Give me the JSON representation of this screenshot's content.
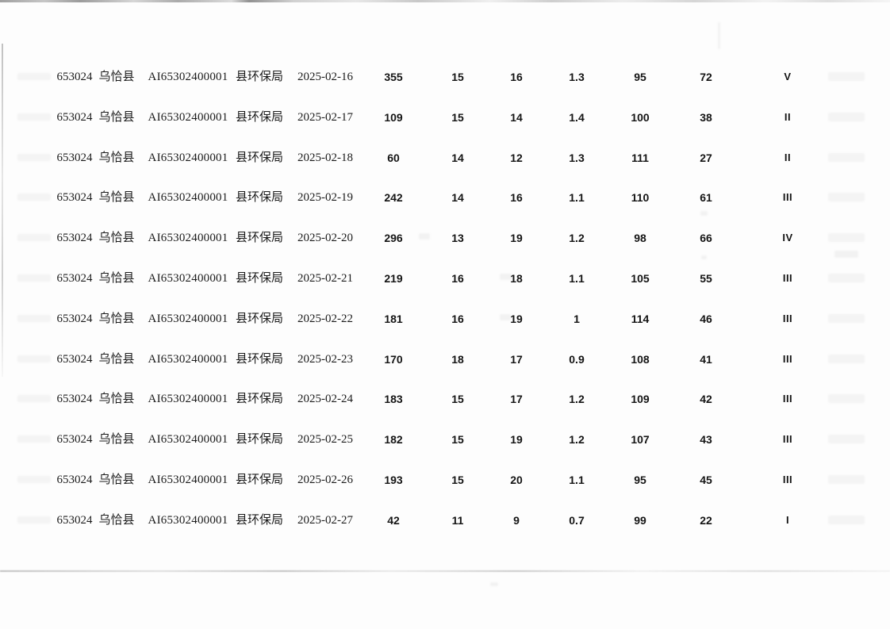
{
  "table": {
    "rows": [
      {
        "code": "653024",
        "county": "乌恰县",
        "station_id": "AI65302400001",
        "dept": "县环保局",
        "date": "2025-02-16",
        "v1": "355",
        "v2": "15",
        "v3": "16",
        "v4": "1.3",
        "v5": "95",
        "v6": "72",
        "level": "V"
      },
      {
        "code": "653024",
        "county": "乌恰县",
        "station_id": "AI65302400001",
        "dept": "县环保局",
        "date": "2025-02-17",
        "v1": "109",
        "v2": "15",
        "v3": "14",
        "v4": "1.4",
        "v5": "100",
        "v6": "38",
        "level": "II"
      },
      {
        "code": "653024",
        "county": "乌恰县",
        "station_id": "AI65302400001",
        "dept": "县环保局",
        "date": "2025-02-18",
        "v1": "60",
        "v2": "14",
        "v3": "12",
        "v4": "1.3",
        "v5": "111",
        "v6": "27",
        "level": "II"
      },
      {
        "code": "653024",
        "county": "乌恰县",
        "station_id": "AI65302400001",
        "dept": "县环保局",
        "date": "2025-02-19",
        "v1": "242",
        "v2": "14",
        "v3": "16",
        "v4": "1.1",
        "v5": "110",
        "v6": "61",
        "level": "III"
      },
      {
        "code": "653024",
        "county": "乌恰县",
        "station_id": "AI65302400001",
        "dept": "县环保局",
        "date": "2025-02-20",
        "v1": "296",
        "v2": "13",
        "v3": "19",
        "v4": "1.2",
        "v5": "98",
        "v6": "66",
        "level": "IV"
      },
      {
        "code": "653024",
        "county": "乌恰县",
        "station_id": "AI65302400001",
        "dept": "县环保局",
        "date": "2025-02-21",
        "v1": "219",
        "v2": "16",
        "v3": "18",
        "v4": "1.1",
        "v5": "105",
        "v6": "55",
        "level": "III"
      },
      {
        "code": "653024",
        "county": "乌恰县",
        "station_id": "AI65302400001",
        "dept": "县环保局",
        "date": "2025-02-22",
        "v1": "181",
        "v2": "16",
        "v3": "19",
        "v4": "1",
        "v5": "114",
        "v6": "46",
        "level": "III"
      },
      {
        "code": "653024",
        "county": "乌恰县",
        "station_id": "AI65302400001",
        "dept": "县环保局",
        "date": "2025-02-23",
        "v1": "170",
        "v2": "18",
        "v3": "17",
        "v4": "0.9",
        "v5": "108",
        "v6": "41",
        "level": "III"
      },
      {
        "code": "653024",
        "county": "乌恰县",
        "station_id": "AI65302400001",
        "dept": "县环保局",
        "date": "2025-02-24",
        "v1": "183",
        "v2": "15",
        "v3": "17",
        "v4": "1.2",
        "v5": "109",
        "v6": "42",
        "level": "III"
      },
      {
        "code": "653024",
        "county": "乌恰县",
        "station_id": "AI65302400001",
        "dept": "县环保局",
        "date": "2025-02-25",
        "v1": "182",
        "v2": "15",
        "v3": "19",
        "v4": "1.2",
        "v5": "107",
        "v6": "43",
        "level": "III"
      },
      {
        "code": "653024",
        "county": "乌恰县",
        "station_id": "AI65302400001",
        "dept": "县环保局",
        "date": "2025-02-26",
        "v1": "193",
        "v2": "15",
        "v3": "20",
        "v4": "1.1",
        "v5": "95",
        "v6": "45",
        "level": "III"
      },
      {
        "code": "653024",
        "county": "乌恰县",
        "station_id": "AI65302400001",
        "dept": "县环保局",
        "date": "2025-02-27",
        "v1": "42",
        "v2": "11",
        "v3": "9",
        "v4": "0.7",
        "v5": "99",
        "v6": "22",
        "level": "I"
      }
    ]
  }
}
